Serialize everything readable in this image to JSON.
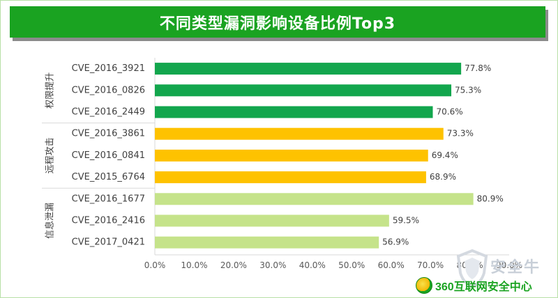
{
  "banner": {
    "title": "不同类型漏洞影响设备比例Top3"
  },
  "watermark": {
    "text": "安全牛"
  },
  "logo": {
    "text": "360互联网安全中心"
  },
  "chart_data": {
    "type": "bar",
    "orientation": "horizontal",
    "title": "不同类型漏洞影响设备比例Top3",
    "xlim": [
      0,
      90
    ],
    "x_ticks": [
      "0.0%",
      "10.0%",
      "20.0%",
      "30.0%",
      "40.0%",
      "50.0%",
      "60.0%",
      "70.0%",
      "80.0%",
      "90.0%"
    ],
    "groups": [
      {
        "name": "权限提升",
        "color": "#12a64d",
        "categories": [
          "CVE_2016_3921",
          "CVE_2016_0826",
          "CVE_2016_2449"
        ],
        "values": [
          77.8,
          75.3,
          70.6
        ],
        "labels": [
          "77.8%",
          "75.3%",
          "70.6%"
        ]
      },
      {
        "name": "远程攻击",
        "color": "#fec200",
        "categories": [
          "CVE_2016_3861",
          "CVE_2016_0841",
          "CVE_2015_6764"
        ],
        "values": [
          73.3,
          69.4,
          68.9
        ],
        "labels": [
          "73.3%",
          "69.4%",
          "68.9%"
        ]
      },
      {
        "name": "信息泄漏",
        "color": "#c5e38a",
        "categories": [
          "CVE_2016_1677",
          "CVE_2016_2416",
          "CVE_2017_0421"
        ],
        "values": [
          80.9,
          59.5,
          56.9
        ],
        "labels": [
          "80.9%",
          "59.5%",
          "56.9%"
        ]
      }
    ]
  }
}
